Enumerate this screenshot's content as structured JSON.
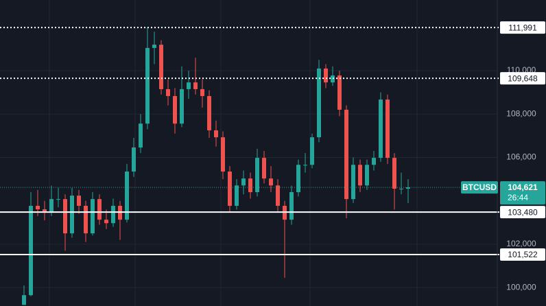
{
  "chart_data": {
    "type": "candlestick",
    "symbol": "BTCUSD",
    "countdown": "26:44",
    "last_price": {
      "value": 104621,
      "label": "104,621"
    },
    "colors": {
      "up": "#26a69a",
      "down": "#ef5350"
    },
    "ylim": [
      99150,
      113260
    ],
    "yticks": [
      {
        "value": 100000,
        "label": "100,000"
      },
      {
        "value": 102000,
        "label": "102,000"
      },
      {
        "value": 106000,
        "label": "106,000"
      },
      {
        "value": 108000,
        "label": "108,000"
      },
      {
        "value": 110000,
        "label": "110,000"
      }
    ],
    "grid": true,
    "levels": [
      {
        "value": 111991,
        "label": "111,991",
        "style": "dotted"
      },
      {
        "value": 109648,
        "label": "109,648",
        "style": "dotted"
      },
      {
        "value": 103480,
        "label": "103,480",
        "style": "solid"
      },
      {
        "value": 101522,
        "label": "101,522",
        "style": "solid"
      }
    ],
    "open": [
      99200,
      99650,
      103770,
      103610,
      103450,
      104080,
      104080,
      102500,
      104240,
      103770,
      102500,
      104080,
      103130,
      102970,
      103770,
      103130,
      105350,
      106460,
      107560,
      111050,
      111200,
      109150,
      108830,
      107560,
      109150,
      109460,
      109150,
      108830,
      107250,
      106930,
      105350,
      103770,
      104710,
      105030,
      104400,
      105980,
      105030,
      104710,
      103770,
      103130,
      104400,
      105660,
      105660,
      106930,
      110100,
      109460,
      109780,
      108200,
      104080,
      105660,
      104710,
      105660,
      105980,
      108670,
      105980,
      104560,
      104560
    ],
    "high": [
      100100,
      104400,
      104500,
      104000,
      104700,
      104600,
      104300,
      104600,
      104500,
      104000,
      104400,
      104300,
      103600,
      104100,
      104000,
      105700,
      106900,
      108000,
      111990,
      111800,
      111400,
      109600,
      109200,
      110200,
      110000,
      110600,
      109600,
      109100,
      107700,
      107200,
      105600,
      105000,
      105400,
      105300,
      106400,
      106300,
      105600,
      105000,
      104000,
      104700,
      105900,
      106200,
      107100,
      110500,
      110300,
      110200,
      110000,
      108400,
      106000,
      105900,
      105900,
      106300,
      109000,
      108900,
      106200,
      105300,
      105000
    ],
    "low": [
      99200,
      99600,
      103300,
      103100,
      103300,
      103700,
      101700,
      102300,
      103400,
      102100,
      102400,
      102900,
      102700,
      102800,
      102200,
      103000,
      105100,
      106200,
      107300,
      110300,
      108900,
      108400,
      107100,
      107400,
      108700,
      108900,
      108300,
      106900,
      106500,
      105000,
      103500,
      103600,
      104300,
      104100,
      104200,
      104800,
      104400,
      103500,
      100450,
      102900,
      104200,
      105300,
      105500,
      106700,
      109200,
      109300,
      107900,
      103200,
      103900,
      104400,
      104500,
      105400,
      105800,
      105700,
      103600,
      104300,
      103900
    ],
    "close": [
      99650,
      103770,
      103610,
      103450,
      104080,
      104080,
      102500,
      104240,
      103770,
      102500,
      104080,
      103130,
      102970,
      103770,
      103130,
      105350,
      106460,
      107560,
      111050,
      111200,
      109150,
      108830,
      107560,
      109150,
      109460,
      109150,
      108830,
      107250,
      106930,
      105350,
      103770,
      104710,
      105030,
      104400,
      105980,
      105030,
      104710,
      103770,
      103130,
      104400,
      105660,
      105660,
      106930,
      110100,
      109460,
      109780,
      108200,
      104080,
      105660,
      104710,
      105660,
      105980,
      108670,
      105980,
      104560,
      104560,
      104621
    ]
  }
}
